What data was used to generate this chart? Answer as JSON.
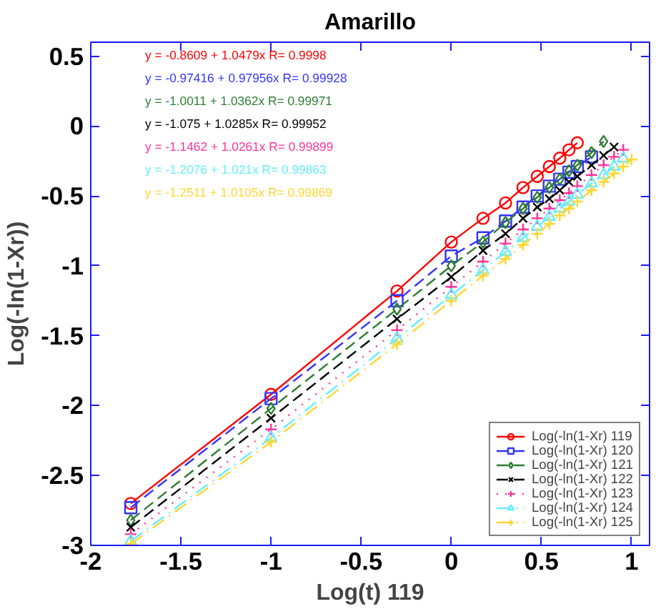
{
  "chart_data": {
    "type": "line",
    "title": "Amarillo",
    "xlabel": "Log(t) 119",
    "ylabel": "Log(-ln(1-Xr))",
    "xlim": [
      -2,
      1.1
    ],
    "ylim": [
      -3,
      0.6
    ],
    "xticks": [
      -2,
      -1.5,
      -1,
      -0.5,
      0,
      0.5,
      1
    ],
    "yticks": [
      -3,
      -2.5,
      -2,
      -1.5,
      -1,
      -0.5,
      0,
      0.5
    ],
    "grid": false,
    "legend": "bottom right",
    "annotations": [
      "y = -0.8609 + 1.0479x   R= 0.9998",
      "y = -0.97416 + 0.97956x   R= 0.99928",
      "y = -1.0011 + 1.0362x   R= 0.99971",
      "y = -1.075 + 1.0285x   R= 0.99952",
      "y = -1.1462 + 1.0261x   R= 0.99899",
      "y = -1.2076 + 1.021x   R= 0.99863",
      "y = -1.2511 + 1.0105x   R= 0.99869"
    ],
    "series": [
      {
        "name": "Log(-ln(1-Xr) 119",
        "color": "#ff0000",
        "marker": "circle",
        "line_style": "solid",
        "x": [
          -1.778,
          -1,
          -0.301,
          0,
          0.176,
          0.301,
          0.398,
          0.477,
          0.544,
          0.602,
          0.653,
          0.699
        ],
        "values": [
          -2.7,
          -1.92,
          -1.18,
          -0.83,
          -0.66,
          -0.55,
          -0.44,
          -0.36,
          -0.29,
          -0.23,
          -0.17,
          -0.12
        ]
      },
      {
        "name": "Log(-ln(1-Xr) 120",
        "color": "#3333ff",
        "marker": "square",
        "line_style": "dashed",
        "x": [
          -1.778,
          -1,
          -0.301,
          0,
          0.176,
          0.301,
          0.398,
          0.477,
          0.544,
          0.602,
          0.653,
          0.699,
          0.778
        ],
        "values": [
          -2.73,
          -1.95,
          -1.25,
          -0.93,
          -0.8,
          -0.68,
          -0.58,
          -0.5,
          -0.43,
          -0.38,
          -0.33,
          -0.29,
          -0.22
        ]
      },
      {
        "name": "Log(-ln(1-Xr) 121",
        "color": "#2e7d32",
        "marker": "diamond",
        "line_style": "dashed",
        "x": [
          -1.778,
          -1,
          -0.301,
          0,
          0.176,
          0.301,
          0.398,
          0.477,
          0.544,
          0.602,
          0.653,
          0.699,
          0.778,
          0.845
        ],
        "values": [
          -2.82,
          -2.02,
          -1.31,
          -1.0,
          -0.83,
          -0.69,
          -0.59,
          -0.51,
          -0.44,
          -0.38,
          -0.32,
          -0.28,
          -0.19,
          -0.11
        ]
      },
      {
        "name": "Log(-ln(1-Xr) 122",
        "color": "#000000",
        "marker": "x",
        "line_style": "dashed",
        "x": [
          -1.778,
          -1,
          -0.301,
          0,
          0.176,
          0.301,
          0.398,
          0.477,
          0.544,
          0.602,
          0.653,
          0.699,
          0.778,
          0.845,
          0.903
        ],
        "values": [
          -2.87,
          -2.09,
          -1.38,
          -1.08,
          -0.89,
          -0.77,
          -0.66,
          -0.58,
          -0.52,
          -0.46,
          -0.4,
          -0.36,
          -0.28,
          -0.21,
          -0.15
        ]
      },
      {
        "name": "Log(-ln(1-Xr) 123",
        "color": "#ff3399",
        "marker": "cross",
        "line_style": "dotted",
        "x": [
          -1.778,
          -1,
          -0.301,
          0,
          0.176,
          0.301,
          0.398,
          0.477,
          0.544,
          0.602,
          0.653,
          0.699,
          0.778,
          0.845,
          0.903,
          0.954
        ],
        "values": [
          -2.92,
          -2.17,
          -1.46,
          -1.15,
          -0.97,
          -0.84,
          -0.74,
          -0.66,
          -0.59,
          -0.53,
          -0.48,
          -0.43,
          -0.35,
          -0.28,
          -0.22,
          -0.17
        ]
      },
      {
        "name": "Log(-ln(1-Xr) 124",
        "color": "#66eeff",
        "marker": "triangle",
        "line_style": "dashdot",
        "x": [
          -1.778,
          -1,
          -0.301,
          0,
          0.176,
          0.301,
          0.398,
          0.477,
          0.544,
          0.602,
          0.653,
          0.699,
          0.778,
          0.845,
          0.903,
          0.954
        ],
        "values": [
          -2.97,
          -2.23,
          -1.52,
          -1.21,
          -1.03,
          -0.9,
          -0.8,
          -0.72,
          -0.65,
          -0.59,
          -0.54,
          -0.49,
          -0.41,
          -0.35,
          -0.29,
          -0.23
        ]
      },
      {
        "name": "Log(-ln(1-Xr) 125",
        "color": "#ffd633",
        "marker": "cross",
        "line_style": "dashdot",
        "x": [
          -1.778,
          -1,
          -0.301,
          0,
          0.176,
          0.301,
          0.398,
          0.477,
          0.544,
          0.602,
          0.653,
          0.699,
          0.778,
          0.845,
          0.903,
          0.954,
          1.0
        ],
        "values": [
          -2.99,
          -2.26,
          -1.56,
          -1.25,
          -1.07,
          -0.95,
          -0.85,
          -0.77,
          -0.7,
          -0.64,
          -0.59,
          -0.54,
          -0.46,
          -0.4,
          -0.34,
          -0.29,
          -0.24
        ]
      }
    ]
  }
}
